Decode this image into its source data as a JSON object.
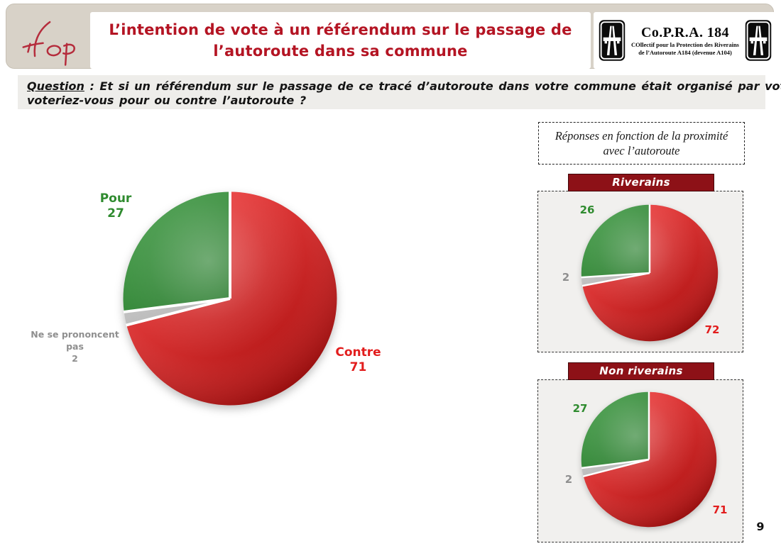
{
  "page": {
    "number": "9"
  },
  "header": {
    "ifop_logo": "ifop",
    "title_line1": "L’intention de vote à un référendum sur le passage de",
    "title_line2": "l’autoroute dans sa commune",
    "title_color": "#b41423",
    "copra": {
      "name": "Co.P.R.A. 184",
      "subtitle_line1": "COllectif pour la Protection des Riverains",
      "subtitle_line2": "de l’Autoroute A184 (devenue A104)"
    }
  },
  "question": {
    "label": "Question",
    "text_line1": " : Et si un référendum sur le passage de ce tracé d’autoroute dans votre commune était organisé par votre municipalité,",
    "text_line2": "voteriez-vous pour ou contre l’autoroute ?"
  },
  "panel": {
    "note_line1": "Réponses en fonction de la proximité",
    "note_line2": "avec l’autoroute",
    "banner_color": "#8d1117"
  },
  "colors": {
    "contre_red": "#ee1414",
    "pour_green": "#117d16",
    "nsp_gray": "#c5c5c5",
    "label_green": "#2f8b2f",
    "label_red": "#e21d1d",
    "label_gray": "#8f8f8f"
  },
  "chart_data": [
    {
      "type": "pie",
      "name": "ensemble",
      "start": "12h",
      "direction": "clockwise",
      "slices": [
        {
          "label": "Contre",
          "value": 71,
          "color": "#ee1414"
        },
        {
          "label": "Ne se prononcent pas",
          "value": 2,
          "color": "#c5c5c5"
        },
        {
          "label": "Pour",
          "value": 27,
          "color": "#117d16"
        }
      ],
      "nsp_lines": [
        "Ne se prononcent",
        "pas"
      ]
    },
    {
      "type": "pie",
      "name": "riverains",
      "title": "Riverains",
      "start": "12h",
      "direction": "clockwise",
      "slices": [
        {
          "label": "Contre",
          "value": 72,
          "color": "#ee1414"
        },
        {
          "label": "Ne se prononcent pas",
          "value": 2,
          "color": "#c5c5c5"
        },
        {
          "label": "Pour",
          "value": 26,
          "color": "#117d16"
        }
      ]
    },
    {
      "type": "pie",
      "name": "non_riverains",
      "title": "Non riverains",
      "start": "12h",
      "direction": "clockwise",
      "slices": [
        {
          "label": "Contre",
          "value": 71,
          "color": "#ee1414"
        },
        {
          "label": "Ne se prononcent pas",
          "value": 2,
          "color": "#c5c5c5"
        },
        {
          "label": "Pour",
          "value": 27,
          "color": "#117d16"
        }
      ]
    }
  ]
}
